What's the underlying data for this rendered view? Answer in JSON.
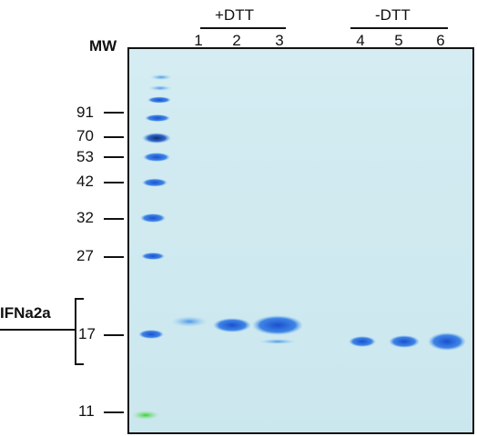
{
  "gel": {
    "mw_header": "MW",
    "markers": [
      "91",
      "70",
      "53",
      "42",
      "32",
      "27",
      "17",
      "11"
    ],
    "groups": [
      {
        "label": "+DTT",
        "lanes": [
          "1",
          "2",
          "3"
        ]
      },
      {
        "label": "-DTT",
        "lanes": [
          "4",
          "5",
          "6"
        ]
      }
    ],
    "band_label": "IFNa2a",
    "colors": {
      "gel_bg": "#c9e6f0",
      "band_blue": "#1f5fd0",
      "dark_band": "#0b2e7a",
      "green_front": "#3fcf3f"
    }
  }
}
